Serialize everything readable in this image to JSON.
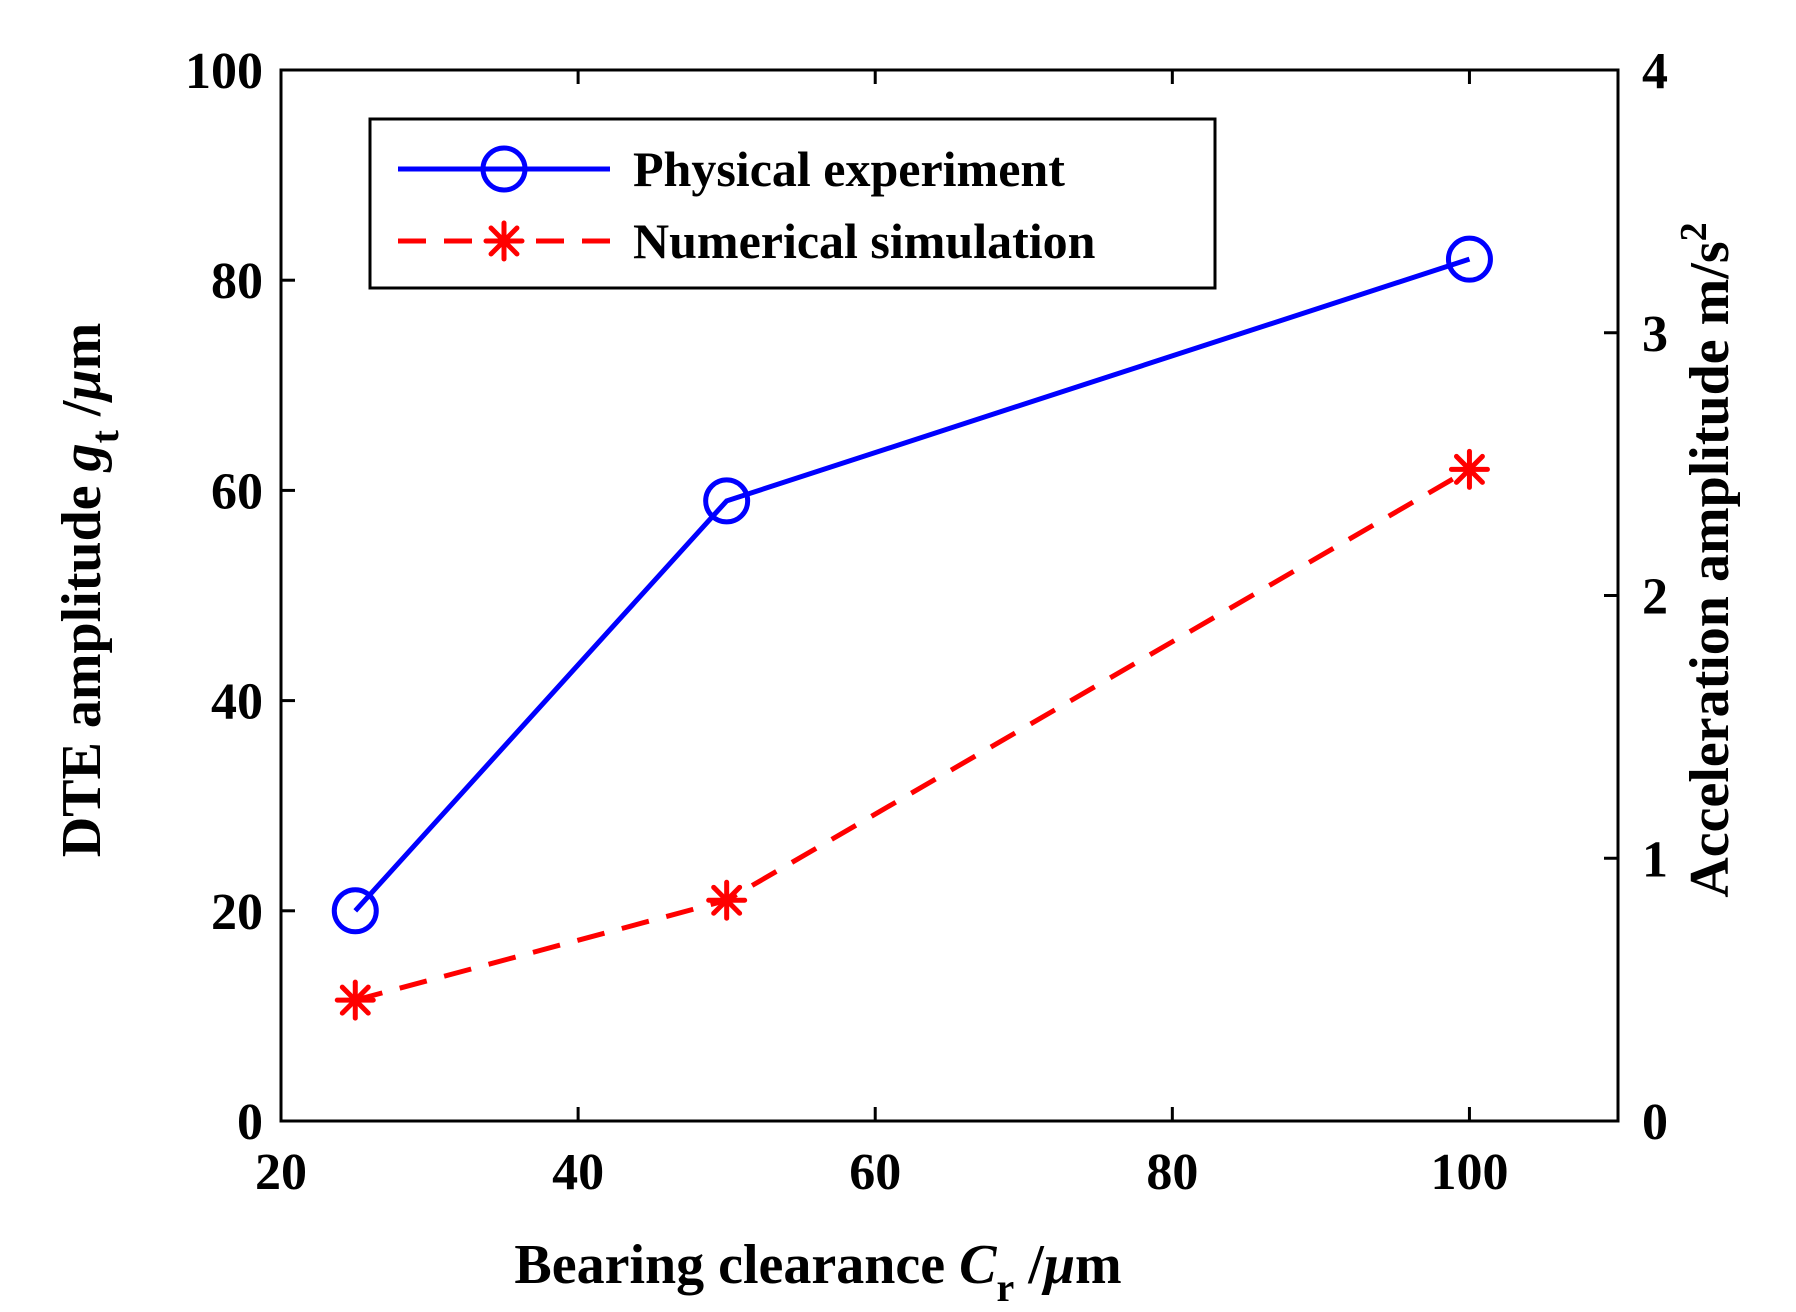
{
  "chart_data": {
    "type": "line",
    "x": [
      25,
      50,
      100
    ],
    "xlim": [
      20,
      110
    ],
    "xticks": [
      "20",
      "40",
      "60",
      "80",
      "100"
    ],
    "xlabel": {
      "prefix": "Bearing clearance ",
      "symbol": "C",
      "subscript": "r",
      "suffix": " /",
      "mu": "μ",
      "unit": "m"
    },
    "ylim_left": [
      0,
      100
    ],
    "yticks_left": [
      "0",
      "20",
      "40",
      "60",
      "80",
      "100"
    ],
    "ylabel_left": {
      "prefix": "DTE amplitude ",
      "symbol": "g",
      "subscript": "t",
      "suffix": " /",
      "mu": "μ",
      "unit": "m"
    },
    "ylim_right": [
      0,
      4
    ],
    "yticks_right": [
      "0",
      "1",
      "2",
      "3",
      "4"
    ],
    "ylabel_right": {
      "text": "Acceleration amplitude  m/s",
      "superscript": "2"
    },
    "legend_position": "top-left",
    "series": [
      {
        "name": "Physical experiment",
        "axis": "left",
        "values": [
          20,
          59,
          82
        ],
        "color": "#0000ff",
        "line_style": "solid",
        "marker": "circle"
      },
      {
        "name": "Numerical simulation",
        "axis": "left",
        "values": [
          11.5,
          21,
          62
        ],
        "color": "#ff0000",
        "line_style": "dashed",
        "marker": "asterisk"
      }
    ]
  }
}
